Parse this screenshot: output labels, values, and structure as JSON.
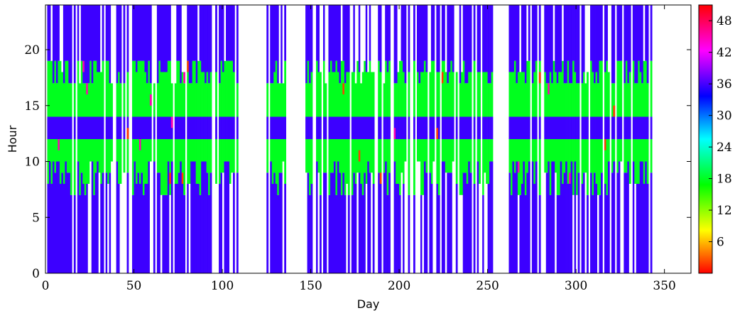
{
  "chart_data": {
    "type": "heatmap",
    "title": "",
    "xlabel": "Day",
    "ylabel": "Hour",
    "xlim": [
      0,
      365
    ],
    "ylim": [
      0,
      24
    ],
    "xticks": [
      "0",
      "50",
      "100",
      "150",
      "200",
      "250",
      "300",
      "350"
    ],
    "yticks": [
      "0",
      "5",
      "10",
      "15",
      "20"
    ],
    "colorbar": {
      "range": [
        0,
        51
      ],
      "ticks": [
        "6",
        "12",
        "18",
        "24",
        "30",
        "36",
        "42",
        "48"
      ],
      "colormap": "hsv"
    },
    "grid": false,
    "legend": "none",
    "day_groups": [
      {
        "days": [
          0,
          55
        ],
        "value_night": 36,
        "value_morning": 18,
        "value_afternoon": 18,
        "value_evening": 36
      },
      {
        "days": [
          56,
          108
        ],
        "value_night": 36,
        "value_morning": 18,
        "value_afternoon": 18,
        "value_evening": 36
      },
      {
        "days": [
          125,
          135
        ],
        "value_night": 36,
        "value_morning": 18,
        "value_afternoon": 18,
        "value_evening": 36
      },
      {
        "days": [
          145,
          252
        ],
        "value_night": 36,
        "value_morning": 18,
        "value_afternoon": 18,
        "value_evening": 36
      },
      {
        "days": [
          262,
          342
        ],
        "value_night": 36,
        "value_morning": 18,
        "value_afternoon": 18,
        "value_evening": 36
      }
    ]
  }
}
